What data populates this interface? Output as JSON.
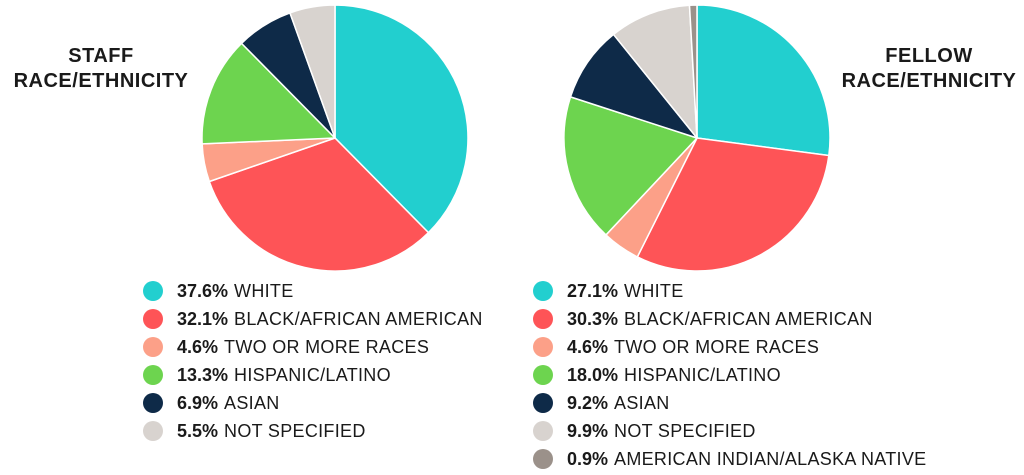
{
  "chart_data": [
    {
      "type": "pie",
      "title_lines": [
        "STAFF",
        "RACE/ETHNICITY"
      ],
      "slices": [
        {
          "label": "WHITE",
          "value": 37.6,
          "value_text": "37.6%",
          "color": "#22cfcf"
        },
        {
          "label": "BLACK/AFRICAN AMERICAN",
          "value": 32.1,
          "value_text": "32.1%",
          "color": "#fe5457"
        },
        {
          "label": "TWO OR MORE RACES",
          "value": 4.6,
          "value_text": "4.6%",
          "color": "#fca088"
        },
        {
          "label": "HISPANIC/LATINO",
          "value": 13.3,
          "value_text": "13.3%",
          "color": "#6dd44f"
        },
        {
          "label": "ASIAN",
          "value": 6.9,
          "value_text": "6.9%",
          "color": "#0e2a48"
        },
        {
          "label": "NOT SPECIFIED",
          "value": 5.5,
          "value_text": "5.5%",
          "color": "#d8d3cf"
        }
      ]
    },
    {
      "type": "pie",
      "title_lines": [
        "FELLOW",
        "RACE/ETHNICITY"
      ],
      "slices": [
        {
          "label": "WHITE",
          "value": 27.1,
          "value_text": "27.1%",
          "color": "#22cfcf"
        },
        {
          "label": "BLACK/AFRICAN AMERICAN",
          "value": 30.3,
          "value_text": "30.3%",
          "color": "#fe5457"
        },
        {
          "label": "TWO OR MORE RACES",
          "value": 4.6,
          "value_text": "4.6%",
          "color": "#fca088"
        },
        {
          "label": "HISPANIC/LATINO",
          "value": 18.0,
          "value_text": "18.0%",
          "color": "#6dd44f"
        },
        {
          "label": "ASIAN",
          "value": 9.2,
          "value_text": "9.2%",
          "color": "#0e2a48"
        },
        {
          "label": "NOT SPECIFIED",
          "value": 9.9,
          "value_text": "9.9%",
          "color": "#d8d3cf"
        },
        {
          "label": "AMERICAN INDIAN/ALASKA NATIVE",
          "value": 0.9,
          "value_text": "0.9%",
          "color": "#9b918a"
        }
      ]
    }
  ]
}
